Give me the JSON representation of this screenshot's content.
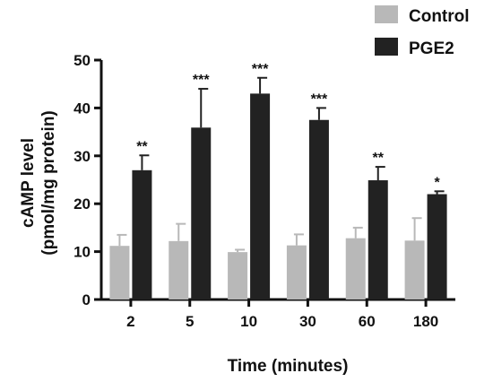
{
  "chart_data": {
    "type": "bar",
    "categories": [
      "2",
      "5",
      "10",
      "30",
      "60",
      "180"
    ],
    "xlabel": "Time (minutes)",
    "ylabel_lines": [
      "cAMP level",
      "(pmol/mg protein)"
    ],
    "ylim": [
      0,
      50
    ],
    "yticks": [
      "0",
      "10",
      "20",
      "30",
      "40",
      "50"
    ],
    "series": [
      {
        "name": "Control",
        "color": "#b8b8b8",
        "values": [
          11.2,
          12.2,
          9.9,
          11.3,
          12.8,
          12.3
        ],
        "errors": [
          2.3,
          3.6,
          0.5,
          2.3,
          2.2,
          4.7
        ]
      },
      {
        "name": "PGE2",
        "color": "#222222",
        "values": [
          27.0,
          35.9,
          43.0,
          37.5,
          24.9,
          22.0
        ],
        "errors": [
          3.1,
          8.1,
          3.3,
          2.5,
          2.8,
          0.6
        ]
      }
    ],
    "significance": [
      "**",
      "***",
      "***",
      "***",
      "**",
      "*"
    ],
    "legend_position": "top-right",
    "grid": false
  }
}
